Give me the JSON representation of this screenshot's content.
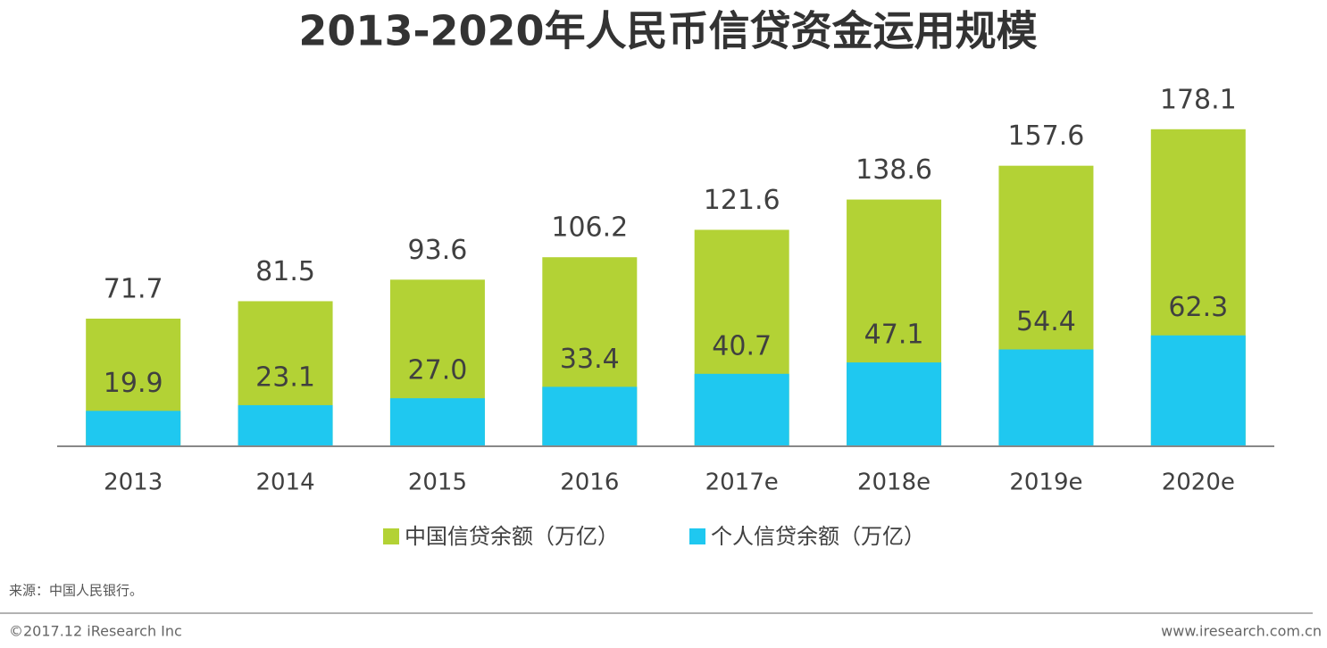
{
  "chart_data": {
    "type": "bar",
    "title": "2013-2020年人民币信贷资金运用规模",
    "categories": [
      "2013",
      "2014",
      "2015",
      "2016",
      "2017e",
      "2018e",
      "2019e",
      "2020e"
    ],
    "series": [
      {
        "name": "中国信贷余额（万亿）",
        "color": "#b3d235",
        "values": [
          71.7,
          81.5,
          93.6,
          106.2,
          121.6,
          138.6,
          157.6,
          178.1
        ],
        "value_labels": [
          "71.7",
          "81.5",
          "93.6",
          "106.2",
          "121.6",
          "138.6",
          "157.6",
          "178.1"
        ]
      },
      {
        "name": "个人信贷余额（万亿）",
        "color": "#1fc8f0",
        "values": [
          19.9,
          23.1,
          27,
          33.4,
          40.7,
          47.1,
          54.4,
          62.3
        ],
        "value_labels": [
          "19.9",
          "23.1",
          "27.0",
          "33.4",
          "40.7",
          "47.1",
          "54.4",
          "62.3"
        ]
      }
    ],
    "ylim": [
      0,
      180
    ],
    "source": "来源：中国人民银行。",
    "footer_left": "©2017.12 iResearch Inc",
    "footer_right": "www.iresearch.com.cn"
  }
}
